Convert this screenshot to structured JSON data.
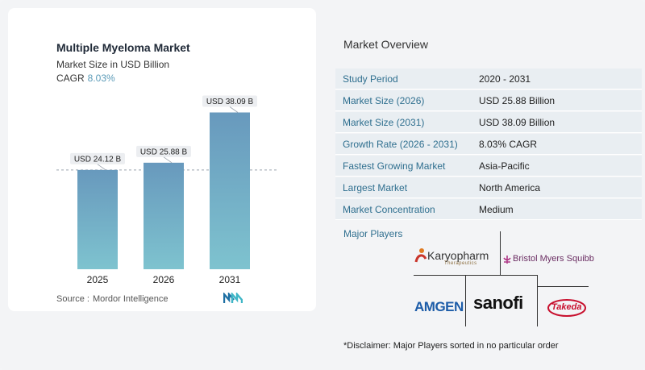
{
  "chart": {
    "title": "Multiple Myeloma Market",
    "subtitle": "Market Size in USD Billion",
    "cagr_label": "CAGR",
    "cagr_value": "8.03%",
    "source_label": "Source :",
    "source_value": "Mordor Intelligence"
  },
  "chart_data": {
    "type": "bar",
    "categories": [
      "2025",
      "2026",
      "2031"
    ],
    "values": [
      24.12,
      25.88,
      38.09
    ],
    "data_labels": [
      "USD 24.12 B",
      "USD 25.88 B",
      "USD 38.09 B"
    ],
    "title": "Multiple Myeloma Market",
    "subtitle": "Market Size in USD Billion",
    "xlabel": "",
    "ylabel": "",
    "ylim": [
      0,
      40
    ],
    "grid": false,
    "reference_line": 24.12,
    "colors": {
      "bar_top": "#6899bd",
      "bar_bottom": "#7ec3cf"
    }
  },
  "overview": {
    "title": "Market Overview",
    "rows": [
      {
        "key": "Study Period",
        "value": "2020 - 2031"
      },
      {
        "key": "Market Size (2026)",
        "value": "USD 25.88 Billion"
      },
      {
        "key": "Market Size (2031)",
        "value": "USD 38.09 Billion"
      },
      {
        "key": "Growth Rate (2026 - 2031)",
        "value": "8.03% CAGR"
      },
      {
        "key": "Fastest Growing Market",
        "value": "Asia-Pacific"
      },
      {
        "key": "Largest Market",
        "value": "North America"
      },
      {
        "key": "Market Concentration",
        "value": "Medium"
      }
    ],
    "major_players_title": "Major Players",
    "players": {
      "karyopharm": "Karyopharm",
      "karyopharm_sub": "Therapeutics",
      "bms": "Bristol Myers Squibb",
      "amgen": "AMGEN",
      "sanofi": "sanofi",
      "takeda": "Takeda"
    },
    "disclaimer": "*Disclaimer: Major Players sorted in no particular order"
  },
  "icons": {
    "brand": "mordor-intelligence-logo-icon"
  }
}
